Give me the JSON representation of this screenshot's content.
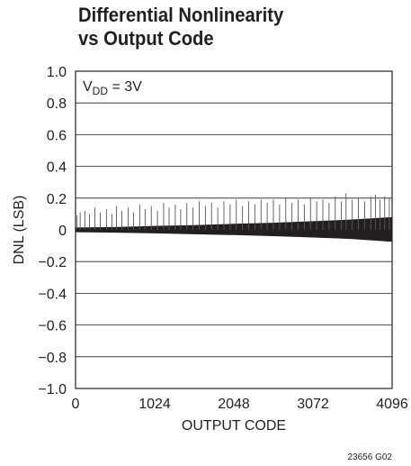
{
  "chart_data": {
    "type": "line",
    "title_line1": "Differential Nonlinearity",
    "title_line2": "vs Output Code",
    "xlabel": "OUTPUT CODE",
    "ylabel": "DNL (LSB)",
    "xlim": [
      0,
      4096
    ],
    "ylim": [
      -1.0,
      1.0
    ],
    "x_ticks": [
      0,
      1024,
      2048,
      3072,
      4096
    ],
    "x_tick_labels": [
      "0",
      "1024",
      "2048",
      "3072",
      "4096"
    ],
    "y_ticks": [
      1.0,
      0.8,
      0.6,
      0.4,
      0.2,
      0,
      -0.2,
      -0.4,
      -0.6,
      -0.8,
      -1.0
    ],
    "y_tick_labels": [
      "1.0",
      "0.8",
      "0.6",
      "0.4",
      "0.2",
      "0",
      "−0.2",
      "−0.4",
      "−0.6",
      "−0.8",
      "−1.0"
    ],
    "grid": "horizontal",
    "annotation": {
      "main": "V",
      "sub": "DD",
      "rest": " = 3V"
    },
    "series": [
      {
        "band_points": [
          {
            "x": 0,
            "low": -0.015,
            "high": 0.015
          },
          {
            "x": 512,
            "low": -0.018,
            "high": 0.018
          },
          {
            "x": 1024,
            "low": -0.022,
            "high": 0.025
          },
          {
            "x": 1536,
            "low": -0.028,
            "high": 0.03
          },
          {
            "x": 2048,
            "low": -0.033,
            "high": 0.038
          },
          {
            "x": 2560,
            "low": -0.04,
            "high": 0.045
          },
          {
            "x": 3072,
            "low": -0.048,
            "high": 0.055
          },
          {
            "x": 3584,
            "low": -0.058,
            "high": 0.065
          },
          {
            "x": 4096,
            "low": -0.075,
            "high": 0.08
          }
        ],
        "spikes": [
          {
            "x": 20,
            "y": 0.09
          },
          {
            "x": 60,
            "y": 0.11
          },
          {
            "x": 120,
            "y": 0.12
          },
          {
            "x": 180,
            "y": 0.1
          },
          {
            "x": 250,
            "y": 0.14
          },
          {
            "x": 320,
            "y": 0.11
          },
          {
            "x": 400,
            "y": 0.13
          },
          {
            "x": 470,
            "y": 0.1
          },
          {
            "x": 530,
            "y": 0.15
          },
          {
            "x": 600,
            "y": 0.12
          },
          {
            "x": 680,
            "y": 0.14
          },
          {
            "x": 750,
            "y": 0.11
          },
          {
            "x": 830,
            "y": 0.16
          },
          {
            "x": 900,
            "y": 0.13
          },
          {
            "x": 980,
            "y": 0.15
          },
          {
            "x": 1060,
            "y": 0.12
          },
          {
            "x": 1140,
            "y": 0.17
          },
          {
            "x": 1210,
            "y": 0.14
          },
          {
            "x": 1290,
            "y": 0.16
          },
          {
            "x": 1360,
            "y": 0.13
          },
          {
            "x": 1440,
            "y": 0.17
          },
          {
            "x": 1520,
            "y": 0.14
          },
          {
            "x": 1600,
            "y": 0.18
          },
          {
            "x": 1680,
            "y": 0.15
          },
          {
            "x": 1760,
            "y": 0.17
          },
          {
            "x": 1840,
            "y": 0.14
          },
          {
            "x": 1920,
            "y": 0.18
          },
          {
            "x": 2000,
            "y": 0.16
          },
          {
            "x": 2080,
            "y": 0.19
          },
          {
            "x": 2160,
            "y": 0.15
          },
          {
            "x": 2240,
            "y": 0.18
          },
          {
            "x": 2320,
            "y": 0.16
          },
          {
            "x": 2400,
            "y": 0.19
          },
          {
            "x": 2480,
            "y": 0.17
          },
          {
            "x": 2560,
            "y": 0.19
          },
          {
            "x": 2640,
            "y": 0.16
          },
          {
            "x": 2720,
            "y": 0.2
          },
          {
            "x": 2800,
            "y": 0.17
          },
          {
            "x": 2880,
            "y": 0.19
          },
          {
            "x": 2960,
            "y": 0.16
          },
          {
            "x": 3040,
            "y": 0.2
          },
          {
            "x": 3120,
            "y": 0.18
          },
          {
            "x": 3200,
            "y": 0.19
          },
          {
            "x": 3280,
            "y": 0.17
          },
          {
            "x": 3360,
            "y": 0.21
          },
          {
            "x": 3440,
            "y": 0.18
          },
          {
            "x": 3500,
            "y": 0.23
          },
          {
            "x": 3580,
            "y": 0.19
          },
          {
            "x": 3660,
            "y": 0.2
          },
          {
            "x": 3740,
            "y": 0.18
          },
          {
            "x": 3820,
            "y": 0.21
          },
          {
            "x": 3880,
            "y": 0.22
          },
          {
            "x": 3940,
            "y": 0.19
          },
          {
            "x": 4000,
            "y": 0.21
          },
          {
            "x": 4060,
            "y": 0.2
          }
        ]
      }
    ]
  },
  "figure_id": "23656 G02"
}
